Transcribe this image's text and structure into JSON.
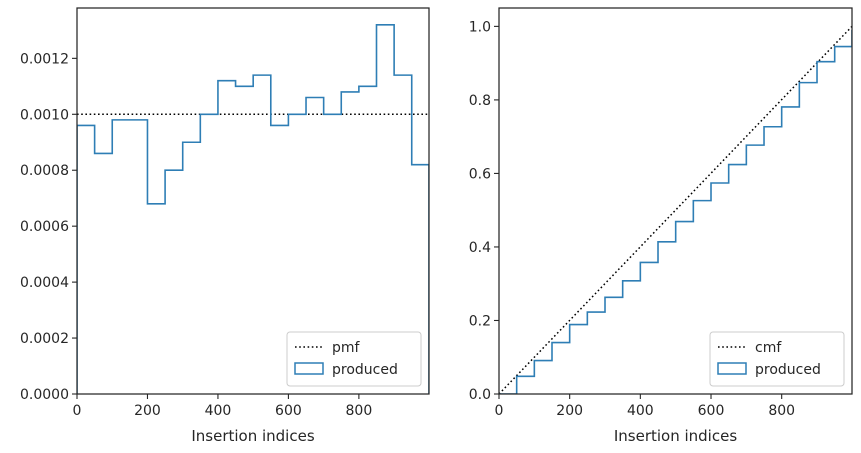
{
  "chart_data": [
    {
      "type": "line",
      "subtype": "step-histogram",
      "title": "",
      "xlabel": "Insertion indices",
      "ylabel": "",
      "xlim": [
        0,
        999
      ],
      "ylim": [
        0,
        0.00138
      ],
      "xticks": [
        0,
        200,
        400,
        600,
        800
      ],
      "xtick_labels": [
        "0",
        "200",
        "400",
        "600",
        "800"
      ],
      "yticks": [
        0,
        0.0002,
        0.0004,
        0.0006,
        0.0008,
        0.001,
        0.0012
      ],
      "ytick_labels": [
        "0.0000",
        "0.0002",
        "0.0004",
        "0.0006",
        "0.0008",
        "0.0010",
        "0.0012"
      ],
      "grid": false,
      "legend_position": "lower-right",
      "bin_edges": [
        0,
        50,
        100,
        150,
        200,
        250,
        300,
        350,
        400,
        450,
        500,
        550,
        600,
        650,
        700,
        750,
        800,
        850,
        900,
        950,
        999
      ],
      "series": [
        {
          "name": "pmf",
          "style": "dotted",
          "color": "#000000",
          "x": [
            0,
            999
          ],
          "y": [
            0.001,
            0.001
          ]
        },
        {
          "name": "produced",
          "style": "step",
          "color": "#2e7eb5",
          "values": [
            0.00096,
            0.00086,
            0.00098,
            0.00098,
            0.00068,
            0.0008,
            0.0009,
            0.001,
            0.00112,
            0.0011,
            0.00114,
            0.00096,
            0.001,
            0.00106,
            0.001,
            0.00108,
            0.0011,
            0.00132,
            0.00114,
            0.00082
          ]
        }
      ]
    },
    {
      "type": "line",
      "subtype": "step-cumulative",
      "title": "",
      "xlabel": "Insertion indices",
      "ylabel": "",
      "xlim": [
        0,
        999
      ],
      "ylim": [
        0,
        1.05
      ],
      "xticks": [
        0,
        200,
        400,
        600,
        800
      ],
      "xtick_labels": [
        "0",
        "200",
        "400",
        "600",
        "800"
      ],
      "yticks": [
        0,
        0.2,
        0.4,
        0.6,
        0.8,
        1.0
      ],
      "ytick_labels": [
        "0.0",
        "0.2",
        "0.4",
        "0.6",
        "0.8",
        "1.0"
      ],
      "grid": false,
      "legend_position": "lower-right",
      "series": [
        {
          "name": "cmf",
          "style": "dotted",
          "color": "#000000",
          "x": [
            0,
            999
          ],
          "y": [
            0,
            1.0
          ]
        },
        {
          "name": "produced",
          "style": "step",
          "color": "#2e7eb5",
          "x": [
            0,
            50,
            100,
            150,
            200,
            250,
            300,
            350,
            400,
            450,
            500,
            550,
            600,
            650,
            700,
            750,
            800,
            850,
            900,
            950,
            999
          ],
          "y": [
            0,
            0.048,
            0.091,
            0.14,
            0.189,
            0.223,
            0.263,
            0.308,
            0.358,
            0.414,
            0.469,
            0.526,
            0.574,
            0.624,
            0.677,
            0.727,
            0.781,
            0.847,
            0.904,
            0.945,
            0.99
          ]
        }
      ]
    }
  ]
}
